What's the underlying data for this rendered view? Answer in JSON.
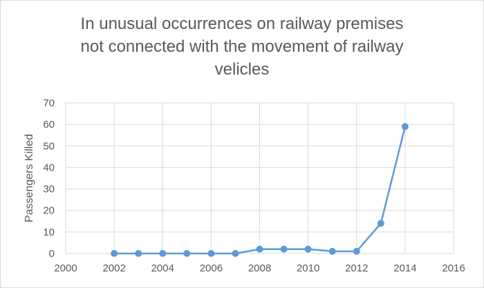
{
  "chart_data": {
    "type": "scatter",
    "title_lines": [
      "In unusual occurrences on railway premises",
      "not connected with the movement of railway",
      "velicles"
    ],
    "ylabel": "Passengers Killed",
    "xlabel": "",
    "xlim": [
      2000,
      2016
    ],
    "ylim": [
      0,
      70
    ],
    "x_ticks": [
      2000,
      2002,
      2004,
      2006,
      2008,
      2010,
      2012,
      2014,
      2016
    ],
    "y_ticks": [
      0,
      10,
      20,
      30,
      40,
      50,
      60,
      70
    ],
    "grid": true,
    "legend": "none",
    "series": [
      {
        "color": "#5b9bd5",
        "markers": true,
        "line": "straight",
        "x": [
          2002,
          2003,
          2004,
          2005,
          2006,
          2007,
          2008,
          2009,
          2010,
          2011,
          2012,
          2013,
          2014
        ],
        "y": [
          0,
          0,
          0,
          0,
          0,
          0,
          2,
          2,
          2,
          1,
          1,
          14,
          59
        ]
      }
    ]
  }
}
